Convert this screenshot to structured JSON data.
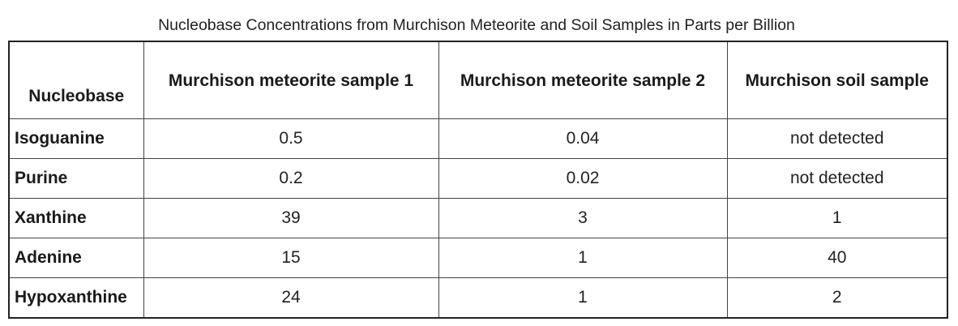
{
  "title": "Nucleobase Concentrations from Murchison Meteorite and Soil Samples in Parts per Billion",
  "table": {
    "headers": [
      "Nucleobase",
      "Murchison meteorite sample 1",
      "Murchison meteorite sample 2",
      "Murchison soil sample"
    ],
    "rows": [
      [
        "Isoguanine",
        "0.5",
        "0.04",
        "not detected"
      ],
      [
        "Purine",
        "0.2",
        "0.02",
        "not detected"
      ],
      [
        "Xanthine",
        "39",
        "3",
        "1"
      ],
      [
        "Adenine",
        "15",
        "1",
        "40"
      ],
      [
        "Hypoxanthine",
        "24",
        "1",
        "2"
      ]
    ]
  }
}
